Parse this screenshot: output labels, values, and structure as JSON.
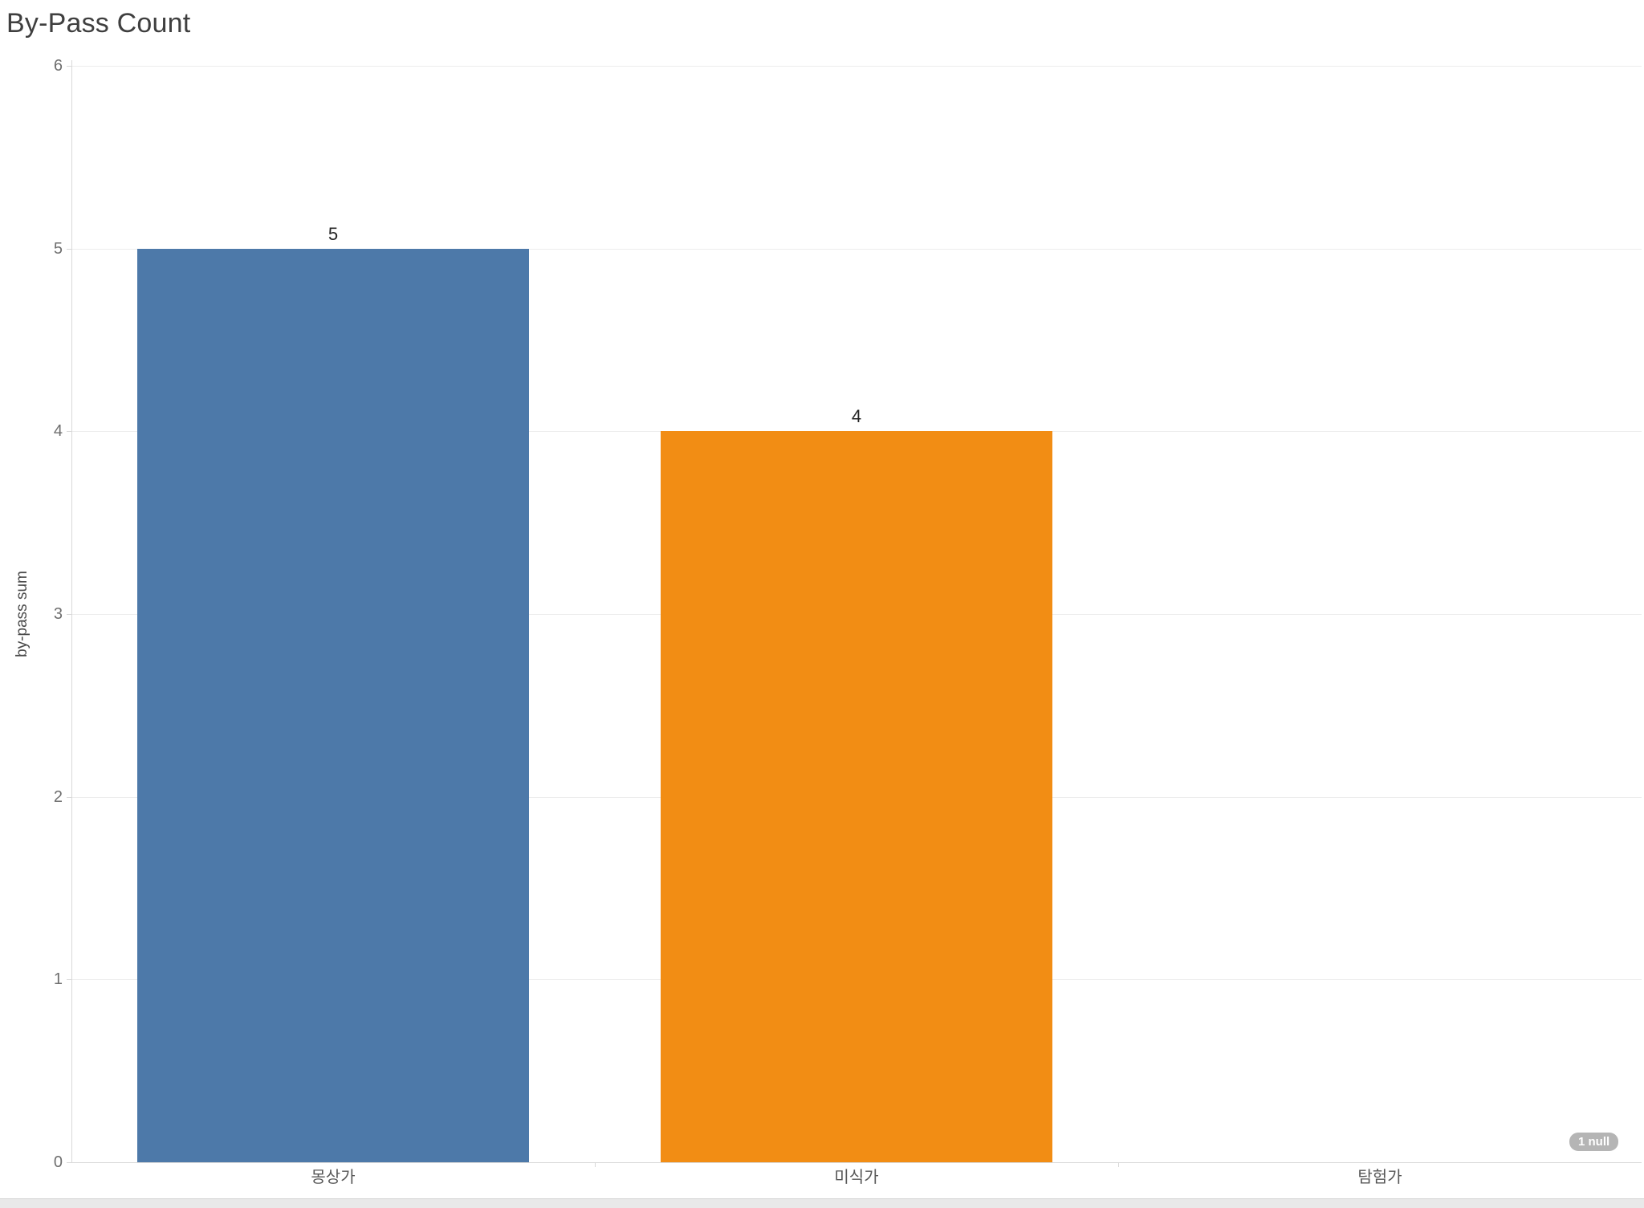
{
  "chart_data": {
    "type": "bar",
    "title": "By-Pass Count",
    "ylabel": "by-pass sum",
    "xlabel": "",
    "categories": [
      "몽상가",
      "미식가",
      "탐험가"
    ],
    "values": [
      5,
      4,
      null
    ],
    "ylim": [
      0,
      6
    ],
    "yticks": [
      0,
      1,
      2,
      3,
      4,
      5,
      6
    ],
    "bar_colors": [
      "#4D79A9",
      "#F28D14",
      "#4D79A9"
    ],
    "grid": "horizontal",
    "legend": "none",
    "null_indicator": "1 null"
  },
  "colors": {
    "bar_blue": "#4D79A9",
    "bar_orange": "#F28D14",
    "badge_bg": "#b5b5b5",
    "badge_text": "#ffffff",
    "gridline": "#ececec",
    "axis_line": "#d9d9d9",
    "title_text": "#3f3f3f",
    "tick_text": "#6e6e6e",
    "category_text": "#575757"
  }
}
